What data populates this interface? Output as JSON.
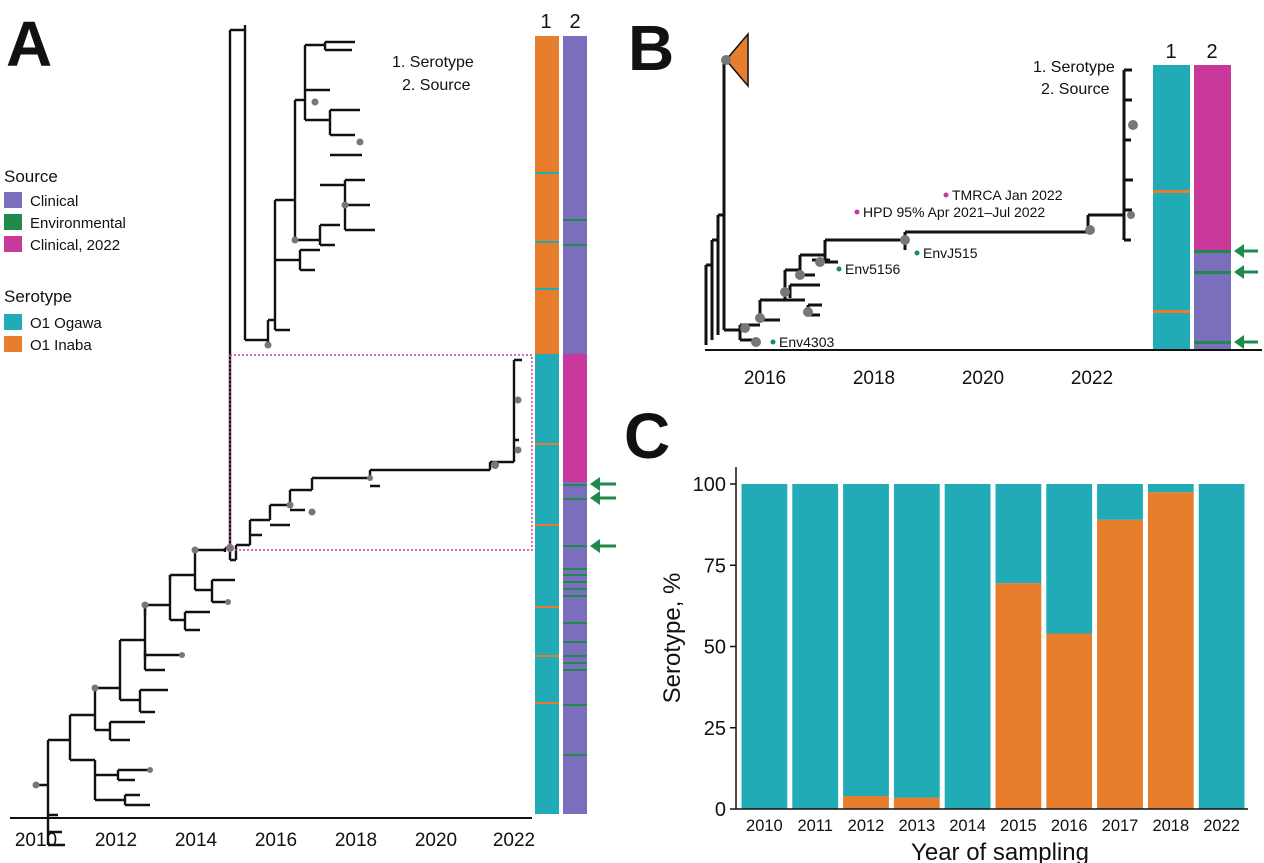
{
  "panels": {
    "a": {
      "letter": "A",
      "column_headers": [
        "1",
        "2"
      ],
      "column_key": [
        "1. Serotype",
        "2. Source"
      ],
      "x_ticks": [
        "2010",
        "2012",
        "2014",
        "2016",
        "2018",
        "2020",
        "2022"
      ],
      "legend": {
        "source_title": "Source",
        "source_items": [
          {
            "label": "Clinical",
            "color": "#7b6fbd"
          },
          {
            "label": "Environmental",
            "color": "#1f8a4c"
          },
          {
            "label": "Clinical, 2022",
            "color": "#c9399c"
          }
        ],
        "serotype_title": "Serotype",
        "serotype_items": [
          {
            "label": "O1 Ogawa",
            "color": "#20abb7"
          },
          {
            "label": "O1 Inaba",
            "color": "#e67e2d"
          }
        ]
      }
    },
    "b": {
      "letter": "B",
      "column_headers": [
        "1",
        "2"
      ],
      "column_key": [
        "1. Serotype",
        "2. Source"
      ],
      "x_ticks": [
        "2016",
        "2018",
        "2020",
        "2022"
      ],
      "annotations": [
        {
          "label": "TMRCA Jan 2022",
          "color": "#c9399c"
        },
        {
          "label": "HPD 95% Apr 2021–Jul 2022",
          "color": "#c9399c"
        },
        {
          "label": "EnvJ515",
          "color": "#1f8a4c"
        },
        {
          "label": "Env5156",
          "color": "#1f8a4c"
        },
        {
          "label": "Env4303",
          "color": "#1f8a4c"
        }
      ]
    },
    "c": {
      "letter": "C"
    }
  },
  "chart_data": {
    "type": "bar",
    "stacked": true,
    "xlabel": "Year of sampling",
    "ylabel": "Serotype, %",
    "ylim": [
      0,
      100
    ],
    "y_ticks": [
      "0",
      "25",
      "50",
      "75",
      "100"
    ],
    "categories": [
      "2010",
      "2011",
      "2012",
      "2013",
      "2014",
      "2015",
      "2016",
      "2017",
      "2018",
      "2022"
    ],
    "series": [
      {
        "color": "#e67e2d",
        "values": [
          0,
          0,
          4,
          3.5,
          0,
          69.5,
          54,
          89,
          97.5,
          0
        ]
      },
      {
        "color": "#20abb7",
        "values": [
          100,
          100,
          96,
          96.5,
          100,
          30.5,
          46,
          11,
          2.5,
          100
        ]
      }
    ],
    "grid": false,
    "legend": "none"
  }
}
